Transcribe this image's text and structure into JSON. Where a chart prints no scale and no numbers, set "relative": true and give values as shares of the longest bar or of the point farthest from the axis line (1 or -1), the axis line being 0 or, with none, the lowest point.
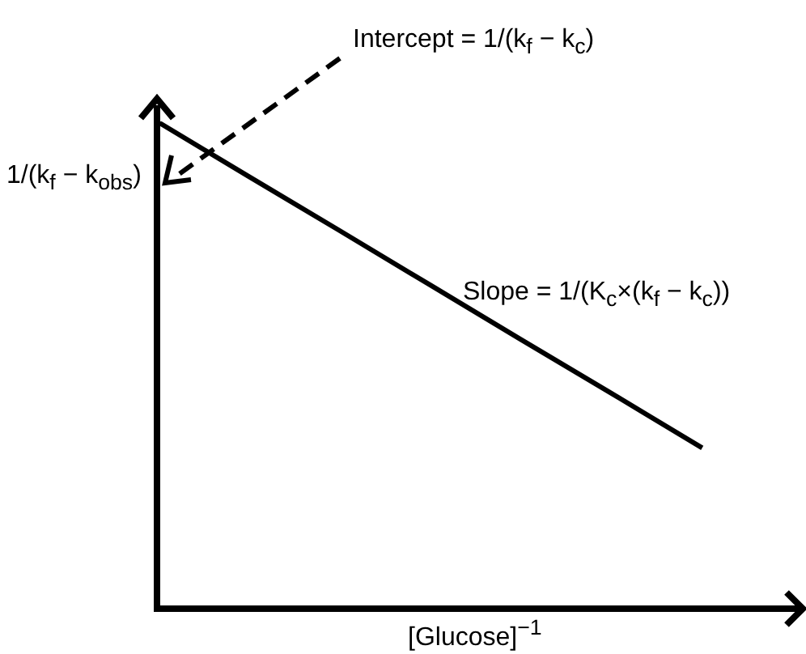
{
  "chart_data": {
    "type": "line",
    "relative": true,
    "categories": [
      null,
      null,
      null,
      null,
      null,
      null,
      null,
      null
    ],
    "series": [
      {
        "color": "#000000",
        "values": [
          1,
          0.888,
          0.777,
          0.665,
          0.553,
          0.442,
          0.33,
          null
        ]
      }
    ],
    "xlabel": "[Glucose]$^{−1}$",
    "ylabel": "1/(k$_{f}$ − k$_{obs}$)",
    "annotations": [
      "Intercept = 1/(k$_{f}$ − k$_{c}$)",
      "Slope = 1/(K$_{c}$×(k$_{f}$ − k$_{c}$))"
    ],
    "legend": false,
    "marker": "none",
    "line_style": "solid"
  }
}
